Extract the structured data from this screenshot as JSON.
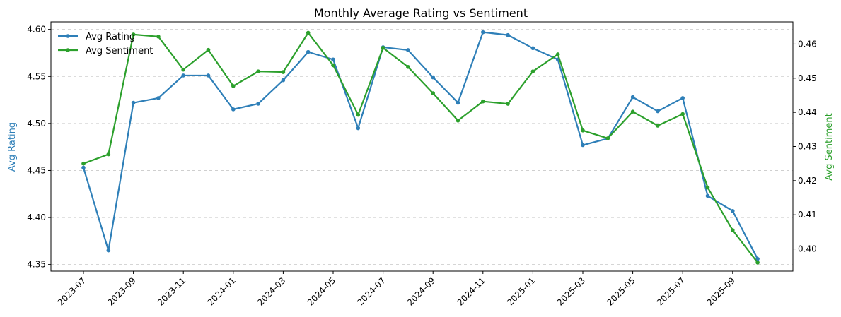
{
  "chart_data": {
    "type": "line",
    "title": "Monthly Average Rating vs Sentiment",
    "xlabel": "",
    "ylabel_left": "Avg Rating",
    "ylabel_right": "Avg Sentiment",
    "x_tick_labels": [
      "2023-07",
      "2023-09",
      "2023-11",
      "2024-01",
      "2024-03",
      "2024-05",
      "2024-07",
      "2024-09",
      "2024-11",
      "2025-01",
      "2025-03",
      "2025-05",
      "2025-07",
      "2025-09"
    ],
    "x": [
      "2023-07",
      "2023-08",
      "2023-09",
      "2023-10",
      "2023-11",
      "2023-12",
      "2024-01",
      "2024-02",
      "2024-03",
      "2024-04",
      "2024-05",
      "2024-06",
      "2024-07",
      "2024-08",
      "2024-09",
      "2024-10",
      "2024-11",
      "2024-12",
      "2025-01",
      "2025-02",
      "2025-03",
      "2025-04",
      "2025-05",
      "2025-06",
      "2025-07",
      "2025-08",
      "2025-09",
      "2025-10"
    ],
    "ylim_left": [
      4.343,
      4.608
    ],
    "ylim_right": [
      0.3935,
      0.4665
    ],
    "yticks_left": [
      "4.35",
      "4.40",
      "4.45",
      "4.50",
      "4.55",
      "4.60"
    ],
    "yticks_right": [
      "0.40",
      "0.41",
      "0.42",
      "0.43",
      "0.44",
      "0.45",
      "0.46"
    ],
    "grid": "horizontal dashed",
    "legend_position": "top-left",
    "series": [
      {
        "name": "Avg Rating",
        "axis": "left",
        "color": "#2e7fb8",
        "values": [
          4.453,
          4.365,
          4.522,
          4.527,
          4.551,
          4.551,
          4.515,
          4.521,
          4.546,
          4.576,
          4.568,
          4.495,
          4.581,
          4.578,
          4.549,
          4.522,
          4.597,
          4.594,
          4.58,
          4.568,
          4.477,
          4.484,
          4.528,
          4.513,
          4.527,
          4.423,
          4.407,
          4.356
        ]
      },
      {
        "name": "Avg Sentiment",
        "axis": "right",
        "color": "#2ca02c",
        "values": [
          0.425,
          0.4277,
          0.4628,
          0.4622,
          0.4525,
          0.4583,
          0.4477,
          0.452,
          0.4518,
          0.4633,
          0.4538,
          0.4393,
          0.4589,
          0.4533,
          0.4456,
          0.4376,
          0.4432,
          0.4425,
          0.452,
          0.457,
          0.4347,
          0.4324,
          0.4402,
          0.4361,
          0.4395,
          0.418,
          0.4055,
          0.396
        ]
      }
    ]
  }
}
